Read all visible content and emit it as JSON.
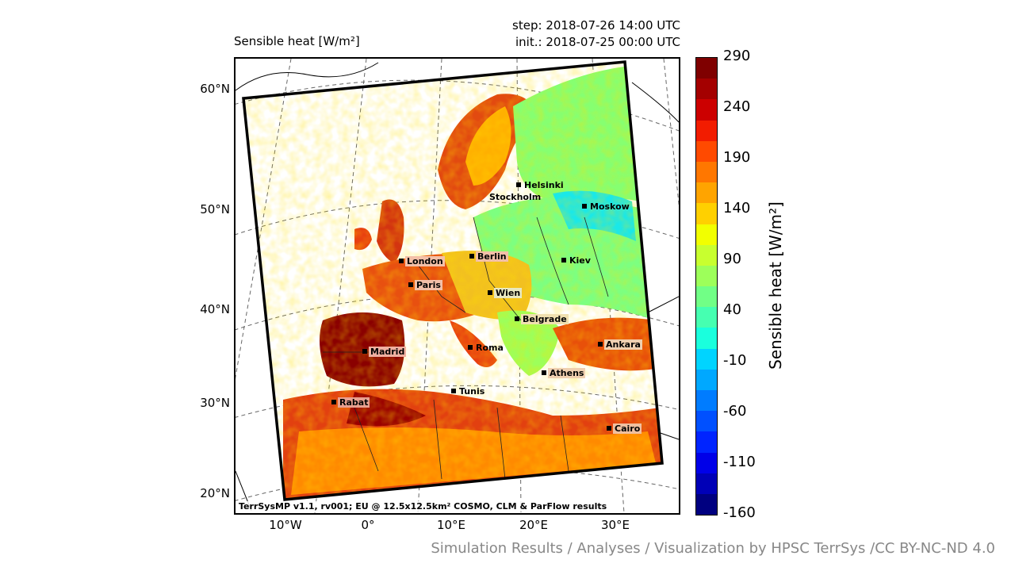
{
  "title": "Sensible heat [W/m²]",
  "step": "step: 2018-07-26 14:00 UTC",
  "init": "init.: 2018-07-25 00:00 UTC",
  "lat_labels": [
    "60°N",
    "50°N",
    "40°N",
    "30°N",
    "20°N"
  ],
  "lon_labels": [
    "10°W",
    "0°",
    "10°E",
    "20°E",
    "30°E"
  ],
  "footer_note": "TerrSysMP v1.1, rv001; EU @ 12.5x12.5km² COSMO, CLM & ParFlow results",
  "colorbar": {
    "label": "Sensible heat [W/m²]",
    "ticks": [
      "290",
      "240",
      "190",
      "140",
      "90",
      "40",
      "-10",
      "-60",
      "-110",
      "-160"
    ],
    "colors": [
      "#7f0000",
      "#a40000",
      "#cc0000",
      "#f21c00",
      "#ff4a00",
      "#ff7700",
      "#ffa400",
      "#ffd000",
      "#f2ff00",
      "#c8ff2f",
      "#9dff5a",
      "#71ff86",
      "#46ffb1",
      "#1affdd",
      "#00d4ff",
      "#00a8ff",
      "#007cff",
      "#0050ff",
      "#0024ff",
      "#0000e8",
      "#0000b7",
      "#000080"
    ]
  },
  "cities": [
    {
      "name": "Helsinki",
      "bg": "none"
    },
    {
      "name": "Stockholm",
      "bg": "none"
    },
    {
      "name": "Moskow",
      "bg": "none"
    },
    {
      "name": "London",
      "bg": "#f3c0a8"
    },
    {
      "name": "Berlin",
      "bg": "#f3c0a8"
    },
    {
      "name": "Kiev",
      "bg": "none"
    },
    {
      "name": "Paris",
      "bg": "#f3c0a8"
    },
    {
      "name": "Wien",
      "bg": "#e8e8c0"
    },
    {
      "name": "Belgrade",
      "bg": "#f0e0b0"
    },
    {
      "name": "Madrid",
      "bg": "#f0b0a0"
    },
    {
      "name": "Roma",
      "bg": "none"
    },
    {
      "name": "Ankara",
      "bg": "#f0d0b0"
    },
    {
      "name": "Athens",
      "bg": "#f0d0b0"
    },
    {
      "name": "Tunis",
      "bg": "none"
    },
    {
      "name": "Rabat",
      "bg": "#e8a090"
    },
    {
      "name": "Cairo",
      "bg": "#f0c0a0"
    }
  ],
  "credit": "Simulation Results / Analyses / Visualization by HPSC TerrSys /CC BY-NC-ND 4.0"
}
